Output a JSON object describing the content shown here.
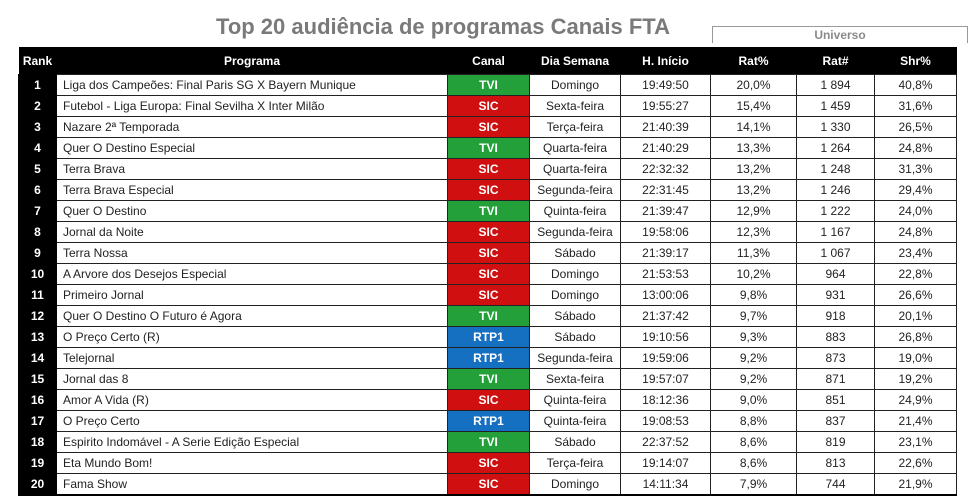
{
  "title": "Top 20 audiência de programas Canais FTA",
  "universo_label": "Universo",
  "headers": [
    "Rank",
    "Programa",
    "Canal",
    "Dia Semana",
    "H. Início",
    "Rat%",
    "Rat#",
    "Shr%"
  ],
  "channel_colors": {
    "TVI": "#23a03a",
    "SIC": "#d01010",
    "RTP1": "#1670c2"
  },
  "rows": [
    {
      "rank": "1",
      "programa": "Liga dos Campeões: Final Paris SG X Bayern Munique",
      "canal": "TVI",
      "dia": "Domingo",
      "inicio": "19:49:50",
      "rat_pct": "20,0%",
      "rat_num": "1 894",
      "shr": "40,8%"
    },
    {
      "rank": "2",
      "programa": "Futebol - Liga Europa: Final Sevilha X Inter Milão",
      "canal": "SIC",
      "dia": "Sexta-feira",
      "inicio": "19:55:27",
      "rat_pct": "15,4%",
      "rat_num": "1 459",
      "shr": "31,6%"
    },
    {
      "rank": "3",
      "programa": "Nazare 2ª Temporada",
      "canal": "SIC",
      "dia": "Terça-feira",
      "inicio": "21:40:39",
      "rat_pct": "14,1%",
      "rat_num": "1 330",
      "shr": "26,5%"
    },
    {
      "rank": "4",
      "programa": "Quer O Destino Especial",
      "canal": "TVI",
      "dia": "Quarta-feira",
      "inicio": "21:40:29",
      "rat_pct": "13,3%",
      "rat_num": "1 264",
      "shr": "24,8%"
    },
    {
      "rank": "5",
      "programa": "Terra Brava",
      "canal": "SIC",
      "dia": "Quarta-feira",
      "inicio": "22:32:32",
      "rat_pct": "13,2%",
      "rat_num": "1 248",
      "shr": "31,3%"
    },
    {
      "rank": "6",
      "programa": "Terra Brava Especial",
      "canal": "SIC",
      "dia": "Segunda-feira",
      "inicio": "22:31:45",
      "rat_pct": "13,2%",
      "rat_num": "1 246",
      "shr": "29,4%"
    },
    {
      "rank": "7",
      "programa": "Quer O Destino",
      "canal": "TVI",
      "dia": "Quinta-feira",
      "inicio": "21:39:47",
      "rat_pct": "12,9%",
      "rat_num": "1 222",
      "shr": "24,0%"
    },
    {
      "rank": "8",
      "programa": "Jornal da Noite",
      "canal": "SIC",
      "dia": "Segunda-feira",
      "inicio": "19:58:06",
      "rat_pct": "12,3%",
      "rat_num": "1 167",
      "shr": "24,8%"
    },
    {
      "rank": "9",
      "programa": "Terra Nossa",
      "canal": "SIC",
      "dia": "Sábado",
      "inicio": "21:39:17",
      "rat_pct": "11,3%",
      "rat_num": "1 067",
      "shr": "23,4%"
    },
    {
      "rank": "10",
      "programa": "A Arvore dos Desejos Especial",
      "canal": "SIC",
      "dia": "Domingo",
      "inicio": "21:53:53",
      "rat_pct": "10,2%",
      "rat_num": "964",
      "shr": "22,8%"
    },
    {
      "rank": "11",
      "programa": "Primeiro Jornal",
      "canal": "SIC",
      "dia": "Domingo",
      "inicio": "13:00:06",
      "rat_pct": "9,8%",
      "rat_num": "931",
      "shr": "26,6%"
    },
    {
      "rank": "12",
      "programa": "Quer O Destino O Futuro é Agora",
      "canal": "TVI",
      "dia": "Sábado",
      "inicio": "21:37:42",
      "rat_pct": "9,7%",
      "rat_num": "918",
      "shr": "20,1%"
    },
    {
      "rank": "13",
      "programa": "O Preço Certo (R)",
      "canal": "RTP1",
      "dia": "Sábado",
      "inicio": "19:10:56",
      "rat_pct": "9,3%",
      "rat_num": "883",
      "shr": "26,8%"
    },
    {
      "rank": "14",
      "programa": "Telejornal",
      "canal": "RTP1",
      "dia": "Segunda-feira",
      "inicio": "19:59:06",
      "rat_pct": "9,2%",
      "rat_num": "873",
      "shr": "19,0%"
    },
    {
      "rank": "15",
      "programa": "Jornal das 8",
      "canal": "TVI",
      "dia": "Sexta-feira",
      "inicio": "19:57:07",
      "rat_pct": "9,2%",
      "rat_num": "871",
      "shr": "19,2%"
    },
    {
      "rank": "16",
      "programa": "Amor A Vida (R)",
      "canal": "SIC",
      "dia": "Quinta-feira",
      "inicio": "18:12:36",
      "rat_pct": "9,0%",
      "rat_num": "851",
      "shr": "24,9%"
    },
    {
      "rank": "17",
      "programa": "O Preço Certo",
      "canal": "RTP1",
      "dia": "Quinta-feira",
      "inicio": "19:08:53",
      "rat_pct": "8,8%",
      "rat_num": "837",
      "shr": "21,4%"
    },
    {
      "rank": "18",
      "programa": "Espirito Indomável - A Serie Edição Especial",
      "canal": "TVI",
      "dia": "Sábado",
      "inicio": "22:37:52",
      "rat_pct": "8,6%",
      "rat_num": "819",
      "shr": "23,1%"
    },
    {
      "rank": "19",
      "programa": "Eta Mundo Bom!",
      "canal": "SIC",
      "dia": "Terça-feira",
      "inicio": "19:14:07",
      "rat_pct": "8,6%",
      "rat_num": "813",
      "shr": "22,6%"
    },
    {
      "rank": "20",
      "programa": "Fama Show",
      "canal": "SIC",
      "dia": "Domingo",
      "inicio": "14:11:34",
      "rat_pct": "7,9%",
      "rat_num": "744",
      "shr": "21,9%"
    }
  ]
}
